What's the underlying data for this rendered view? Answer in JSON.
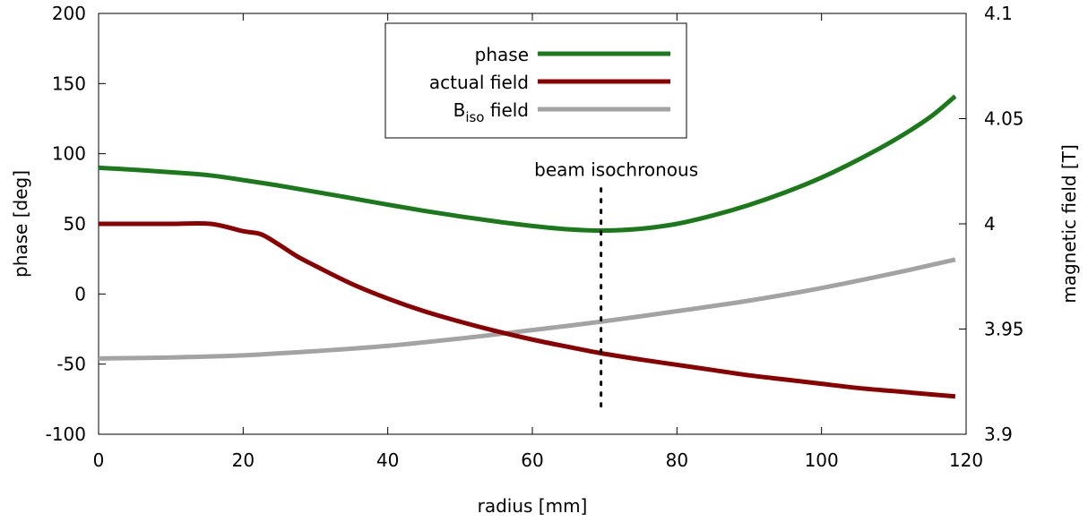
{
  "chart_data": {
    "type": "line",
    "xlabel": "radius [mm]",
    "ylabel": "phase [deg]",
    "y2label": "magnetic field [T]",
    "xlim": [
      0,
      120
    ],
    "ylim": [
      -100,
      200
    ],
    "y2lim": [
      3.9,
      4.1
    ],
    "xticks": [
      "0",
      "20",
      "40",
      "60",
      "80",
      "100",
      "120"
    ],
    "yticks": [
      "200",
      "150",
      "100",
      "50",
      "0",
      "-50",
      "-100"
    ],
    "y2ticks": [
      "4.1",
      "4.05",
      "4",
      "3.95",
      "3.9"
    ],
    "grid": false,
    "legend_position": "top-center",
    "annotation": {
      "text": "beam isochronous",
      "x": 69.5,
      "y_from": -80,
      "y_to": 77
    },
    "series": [
      {
        "name": "phase",
        "axis": "left",
        "color": "#1a7a1a",
        "x": [
          0,
          5,
          10,
          15.5,
          20,
          25,
          30,
          35,
          40,
          45,
          50,
          55,
          60,
          65,
          69.5,
          75,
          80,
          85,
          90,
          95,
          100,
          105,
          110,
          115,
          118.5
        ],
        "y": [
          90,
          88.5,
          86.8,
          84.5,
          81.2,
          77.2,
          72.8,
          68.3,
          63.7,
          59.3,
          55.3,
          51.7,
          48.5,
          46.1,
          45.2,
          46.5,
          50,
          56,
          63.5,
          72.5,
          83,
          95.5,
          109.5,
          126,
          141
        ]
      },
      {
        "name": "actual field",
        "axis": "right",
        "color": "#8b0000",
        "x": [
          0,
          5,
          10,
          15.5,
          20,
          22.5,
          25,
          27.5,
          30,
          35,
          40,
          45,
          50,
          55,
          60,
          65,
          69.5,
          75,
          80,
          85,
          90,
          95,
          100,
          105,
          110,
          115,
          118.5
        ],
        "y": [
          4.0,
          4.0,
          4.0,
          4.0,
          3.9965,
          3.995,
          3.99,
          3.9845,
          3.98,
          3.9715,
          3.9645,
          3.9585,
          3.9535,
          3.949,
          3.945,
          3.9415,
          3.9385,
          3.9355,
          3.933,
          3.9305,
          3.928,
          3.926,
          3.924,
          3.922,
          3.9205,
          3.919,
          3.918
        ]
      },
      {
        "name": "B_iso field",
        "legend_main": "B",
        "legend_sub": "iso",
        "legend_rest": " field",
        "axis": "right",
        "color": "#a3a3a3",
        "x": [
          0,
          10,
          20,
          30,
          40,
          50,
          60,
          69.5,
          80,
          90,
          100,
          110,
          118.5
        ],
        "y": [
          3.936,
          3.9365,
          3.9375,
          3.9395,
          3.942,
          3.9455,
          3.9495,
          3.9535,
          3.9585,
          3.9635,
          3.9695,
          3.9765,
          3.983
        ]
      }
    ]
  }
}
